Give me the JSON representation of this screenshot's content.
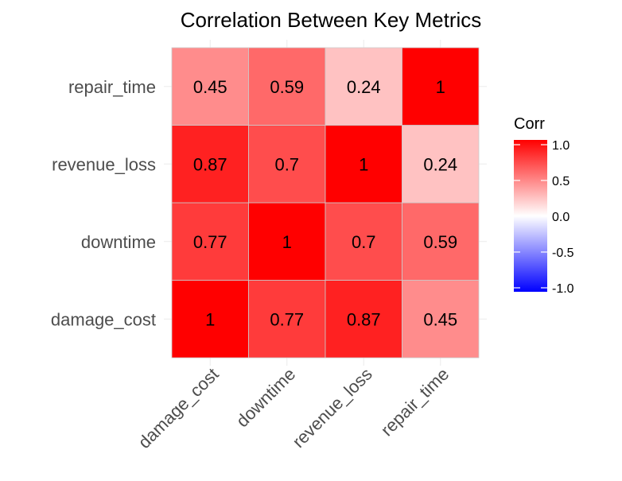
{
  "chart_data": {
    "type": "heatmap",
    "title": "Correlation Between Key Metrics",
    "x_categories": [
      "damage_cost",
      "downtime",
      "revenue_loss",
      "repair_time"
    ],
    "y_categories": [
      "damage_cost",
      "downtime",
      "revenue_loss",
      "repair_time"
    ],
    "matrix": [
      [
        1,
        0.77,
        0.87,
        0.45
      ],
      [
        0.77,
        1,
        0.7,
        0.59
      ],
      [
        0.87,
        0.7,
        1,
        0.24
      ],
      [
        0.45,
        0.59,
        0.24,
        1
      ]
    ],
    "labels": [
      [
        "1",
        "0.77",
        "0.87",
        "0.45"
      ],
      [
        "0.77",
        "1",
        "0.7",
        "0.59"
      ],
      [
        "0.87",
        "0.7",
        "1",
        "0.24"
      ],
      [
        "0.45",
        "0.59",
        "0.24",
        "1"
      ]
    ],
    "color_scale": {
      "low": "#0000ff",
      "mid": "#ffffff",
      "high": "#ff0000",
      "limits": [
        -1,
        1
      ]
    },
    "legend": {
      "title": "Corr",
      "position": "right",
      "ticks": [
        1.0,
        0.5,
        0.0,
        -0.5,
        -1.0
      ],
      "tick_labels": [
        "1.0",
        "0.5",
        "0.0",
        "-0.5",
        "-1.0"
      ]
    },
    "grid": true
  }
}
